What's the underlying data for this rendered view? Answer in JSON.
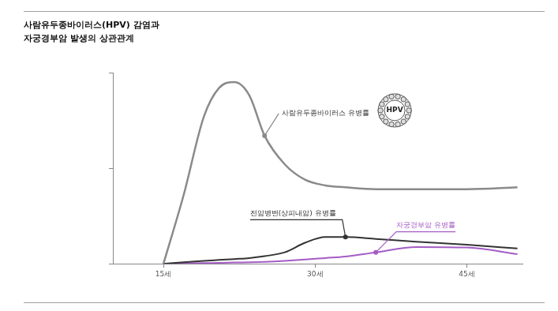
{
  "chart_data": {
    "type": "line",
    "title": [
      "사람유두종바이러스(HPV) 감염과",
      "자궁경부암 발생의 상관관계"
    ],
    "x": [
      15,
      17,
      19,
      20.5,
      22,
      23.5,
      25,
      27,
      29,
      31,
      33,
      36,
      40,
      45,
      50
    ],
    "series": [
      {
        "name": "사람유두종바이러스 유병률",
        "color": "#8a8a8a",
        "icon_label": "HPV",
        "values": [
          0,
          36,
          77,
          92,
          95,
          88,
          67,
          52,
          44,
          41,
          40,
          39,
          39,
          39,
          40
        ]
      },
      {
        "name": "전암병변(상피내암) 유병률",
        "color": "#333333",
        "values": [
          0,
          0.8,
          1.5,
          2,
          2.5,
          3,
          4,
          6,
          11,
          14,
          14,
          13,
          11.5,
          10,
          8
        ]
      },
      {
        "name": "자궁경부암 유병률",
        "color": "#a45cc4",
        "values": [
          0,
          0.2,
          0.4,
          0.5,
          0.7,
          0.8,
          1,
          1.5,
          2.2,
          3,
          3.8,
          6,
          8.8,
          8.5,
          5
        ]
      }
    ],
    "xlim": [
      10,
      50.5
    ],
    "xticks": [
      {
        "value": 15,
        "label": "15세"
      },
      {
        "value": 30,
        "label": "30세"
      },
      {
        "value": 45,
        "label": "45세"
      }
    ],
    "ylim": [
      0,
      100
    ],
    "yticks": [
      0,
      50,
      100
    ],
    "tick_labels": "x",
    "grid": false
  }
}
